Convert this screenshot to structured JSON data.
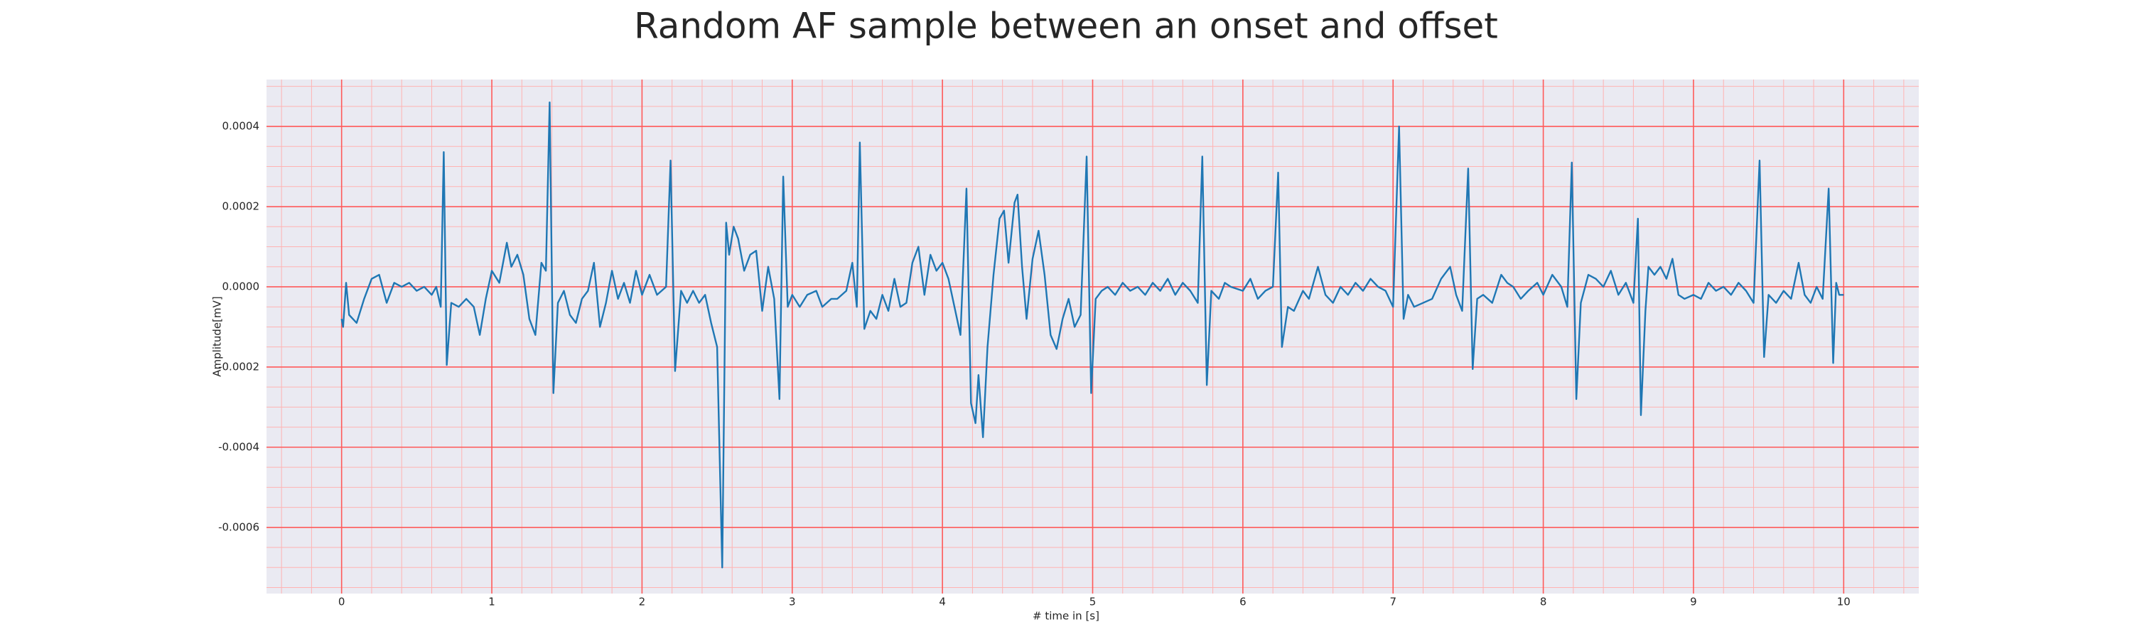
{
  "chart_data": {
    "type": "line",
    "title": "Random AF sample between an onset and offset",
    "xlabel": "# time in [s]",
    "ylabel": "Amplitude[mV]",
    "xlim": [
      -0.5,
      10.5
    ],
    "xticks": [
      0,
      1,
      2,
      3,
      4,
      5,
      6,
      7,
      8,
      9,
      10
    ],
    "ylim": [
      -0.000765,
      0.000517
    ],
    "yticks": [
      {
        "value": -0.0006,
        "label": "-0.0006"
      },
      {
        "value": -0.0004,
        "label": "-0.0004"
      },
      {
        "value": -0.0002,
        "label": "-0.0002"
      },
      {
        "value": 0,
        "label": "0.0000"
      },
      {
        "value": 0.0002,
        "label": "0.0002"
      },
      {
        "value": 0.0004,
        "label": "0.0004"
      }
    ],
    "grid": true,
    "xminor": 5,
    "yminor": 4,
    "series": [
      {
        "color": "#1f77b4",
        "x": [
          0.0,
          0.01,
          0.03,
          0.05,
          0.1,
          0.15,
          0.2,
          0.25,
          0.3,
          0.35,
          0.4,
          0.45,
          0.5,
          0.55,
          0.6,
          0.63,
          0.66,
          0.68,
          0.7,
          0.73,
          0.78,
          0.83,
          0.88,
          0.92,
          0.96,
          1.0,
          1.05,
          1.1,
          1.13,
          1.17,
          1.21,
          1.25,
          1.29,
          1.33,
          1.36,
          1.385,
          1.41,
          1.44,
          1.48,
          1.52,
          1.56,
          1.6,
          1.64,
          1.68,
          1.72,
          1.76,
          1.8,
          1.84,
          1.88,
          1.92,
          1.96,
          2.0,
          2.05,
          2.1,
          2.16,
          2.19,
          2.22,
          2.26,
          2.3,
          2.34,
          2.38,
          2.42,
          2.46,
          2.5,
          2.534,
          2.56,
          2.58,
          2.61,
          2.64,
          2.68,
          2.72,
          2.76,
          2.8,
          2.84,
          2.88,
          2.915,
          2.94,
          2.97,
          3.0,
          3.05,
          3.1,
          3.16,
          3.2,
          3.26,
          3.3,
          3.36,
          3.4,
          3.43,
          3.45,
          3.48,
          3.52,
          3.56,
          3.6,
          3.64,
          3.68,
          3.72,
          3.76,
          3.8,
          3.84,
          3.88,
          3.92,
          3.96,
          4.0,
          4.04,
          4.08,
          4.12,
          4.16,
          4.19,
          4.22,
          4.24,
          4.27,
          4.3,
          4.34,
          4.38,
          4.41,
          4.44,
          4.48,
          4.5,
          4.53,
          4.56,
          4.6,
          4.64,
          4.68,
          4.72,
          4.76,
          4.8,
          4.84,
          4.88,
          4.92,
          4.96,
          4.99,
          5.02,
          5.06,
          5.1,
          5.15,
          5.2,
          5.25,
          5.3,
          5.35,
          5.4,
          5.45,
          5.5,
          5.55,
          5.6,
          5.65,
          5.7,
          5.73,
          5.76,
          5.79,
          5.84,
          5.88,
          5.92,
          6.0,
          6.05,
          6.1,
          6.15,
          6.2,
          6.235,
          6.26,
          6.3,
          6.34,
          6.4,
          6.44,
          6.5,
          6.55,
          6.6,
          6.65,
          6.7,
          6.75,
          6.8,
          6.85,
          6.9,
          6.95,
          7.0,
          7.04,
          7.07,
          7.1,
          7.14,
          7.2,
          7.26,
          7.32,
          7.38,
          7.42,
          7.46,
          7.5,
          7.53,
          7.56,
          7.6,
          7.66,
          7.72,
          7.76,
          7.8,
          7.85,
          7.9,
          7.96,
          8.0,
          8.06,
          8.12,
          8.16,
          8.19,
          8.22,
          8.25,
          8.3,
          8.35,
          8.4,
          8.45,
          8.5,
          8.55,
          8.6,
          8.63,
          8.65,
          8.68,
          8.7,
          8.74,
          8.78,
          8.82,
          8.86,
          8.9,
          8.94,
          9.0,
          9.05,
          9.1,
          9.15,
          9.2,
          9.25,
          9.3,
          9.35,
          9.4,
          9.44,
          9.47,
          9.5,
          9.55,
          9.6,
          9.65,
          9.7,
          9.74,
          9.78,
          9.82,
          9.86,
          9.9,
          9.93,
          9.95,
          9.97,
          10.0
        ],
        "values": [
          -8e-05,
          -0.0001,
          1e-05,
          -7e-05,
          -9e-05,
          -3e-05,
          2e-05,
          3e-05,
          -4e-05,
          1e-05,
          0.0,
          1e-05,
          -1e-05,
          0.0,
          -2e-05,
          0.0,
          -5e-05,
          0.000336,
          -0.000195,
          -4e-05,
          -5e-05,
          -3e-05,
          -5e-05,
          -0.00012,
          -3e-05,
          4e-05,
          1e-05,
          0.00011,
          5e-05,
          8e-05,
          3e-05,
          -8e-05,
          -0.00012,
          6e-05,
          4e-05,
          0.00046,
          -0.000265,
          -4e-05,
          -1e-05,
          -7e-05,
          -9e-05,
          -3e-05,
          -1e-05,
          6e-05,
          -0.0001,
          -4e-05,
          4e-05,
          -3e-05,
          1e-05,
          -4e-05,
          4e-05,
          -2e-05,
          3e-05,
          -2e-05,
          0.0,
          0.000315,
          -0.00021,
          -1e-05,
          -4e-05,
          -1e-05,
          -4e-05,
          -2e-05,
          -9e-05,
          -0.00015,
          -0.0007,
          0.00016,
          8e-05,
          0.00015,
          0.00012,
          4e-05,
          8e-05,
          9e-05,
          -6e-05,
          5e-05,
          -3e-05,
          -0.00028,
          0.000275,
          -5e-05,
          -2e-05,
          -5e-05,
          -2e-05,
          -1e-05,
          -5e-05,
          -3e-05,
          -3e-05,
          -1e-05,
          6e-05,
          -5e-05,
          0.00036,
          -0.000105,
          -6e-05,
          -8e-05,
          -2e-05,
          -6e-05,
          2e-05,
          -5e-05,
          -4e-05,
          6e-05,
          0.0001,
          -2e-05,
          8e-05,
          4e-05,
          6e-05,
          2e-05,
          -5e-05,
          -0.00012,
          0.000245,
          -0.00029,
          -0.00034,
          -0.00022,
          -0.000375,
          -0.00015,
          3e-05,
          0.00017,
          0.00019,
          6e-05,
          0.00021,
          0.00023,
          5e-05,
          -8e-05,
          7e-05,
          0.00014,
          3e-05,
          -0.00012,
          -0.000155,
          -8e-05,
          -3e-05,
          -0.0001,
          -7e-05,
          0.000325,
          -0.000265,
          -3e-05,
          -1e-05,
          0.0,
          -2e-05,
          1e-05,
          -1e-05,
          0.0,
          -2e-05,
          1e-05,
          -1e-05,
          2e-05,
          -2e-05,
          1e-05,
          -1e-05,
          -4e-05,
          0.000325,
          -0.000245,
          -1e-05,
          -3e-05,
          1e-05,
          0.0,
          -1e-05,
          2e-05,
          -3e-05,
          -1e-05,
          0.0,
          0.000285,
          -0.00015,
          -5e-05,
          -6e-05,
          -1e-05,
          -3e-05,
          5e-05,
          -2e-05,
          -4e-05,
          0.0,
          -2e-05,
          1e-05,
          -1e-05,
          2e-05,
          0.0,
          -1e-05,
          -5e-05,
          0.0004,
          -8e-05,
          -2e-05,
          -5e-05,
          -4e-05,
          -3e-05,
          2e-05,
          5e-05,
          -2e-05,
          -6e-05,
          0.000295,
          -0.000205,
          -3e-05,
          -2e-05,
          -4e-05,
          3e-05,
          1e-05,
          0.0,
          -3e-05,
          -1e-05,
          1e-05,
          -2e-05,
          3e-05,
          0.0,
          -5e-05,
          0.00031,
          -0.00028,
          -4e-05,
          3e-05,
          2e-05,
          0.0,
          4e-05,
          -2e-05,
          1e-05,
          -4e-05,
          0.00017,
          -0.00032,
          -6e-05,
          5e-05,
          3e-05,
          5e-05,
          2e-05,
          7e-05,
          -2e-05,
          -3e-05,
          -2e-05,
          -3e-05,
          1e-05,
          -1e-05,
          0.0,
          -2e-05,
          1e-05,
          -1e-05,
          -4e-05,
          0.000315,
          -0.000175,
          -2e-05,
          -4e-05,
          -1e-05,
          -3e-05,
          6e-05,
          -2e-05,
          -4e-05,
          0.0,
          -3e-05,
          0.000245,
          -0.00019,
          1e-05,
          -2e-05,
          -2e-05
        ]
      }
    ]
  }
}
